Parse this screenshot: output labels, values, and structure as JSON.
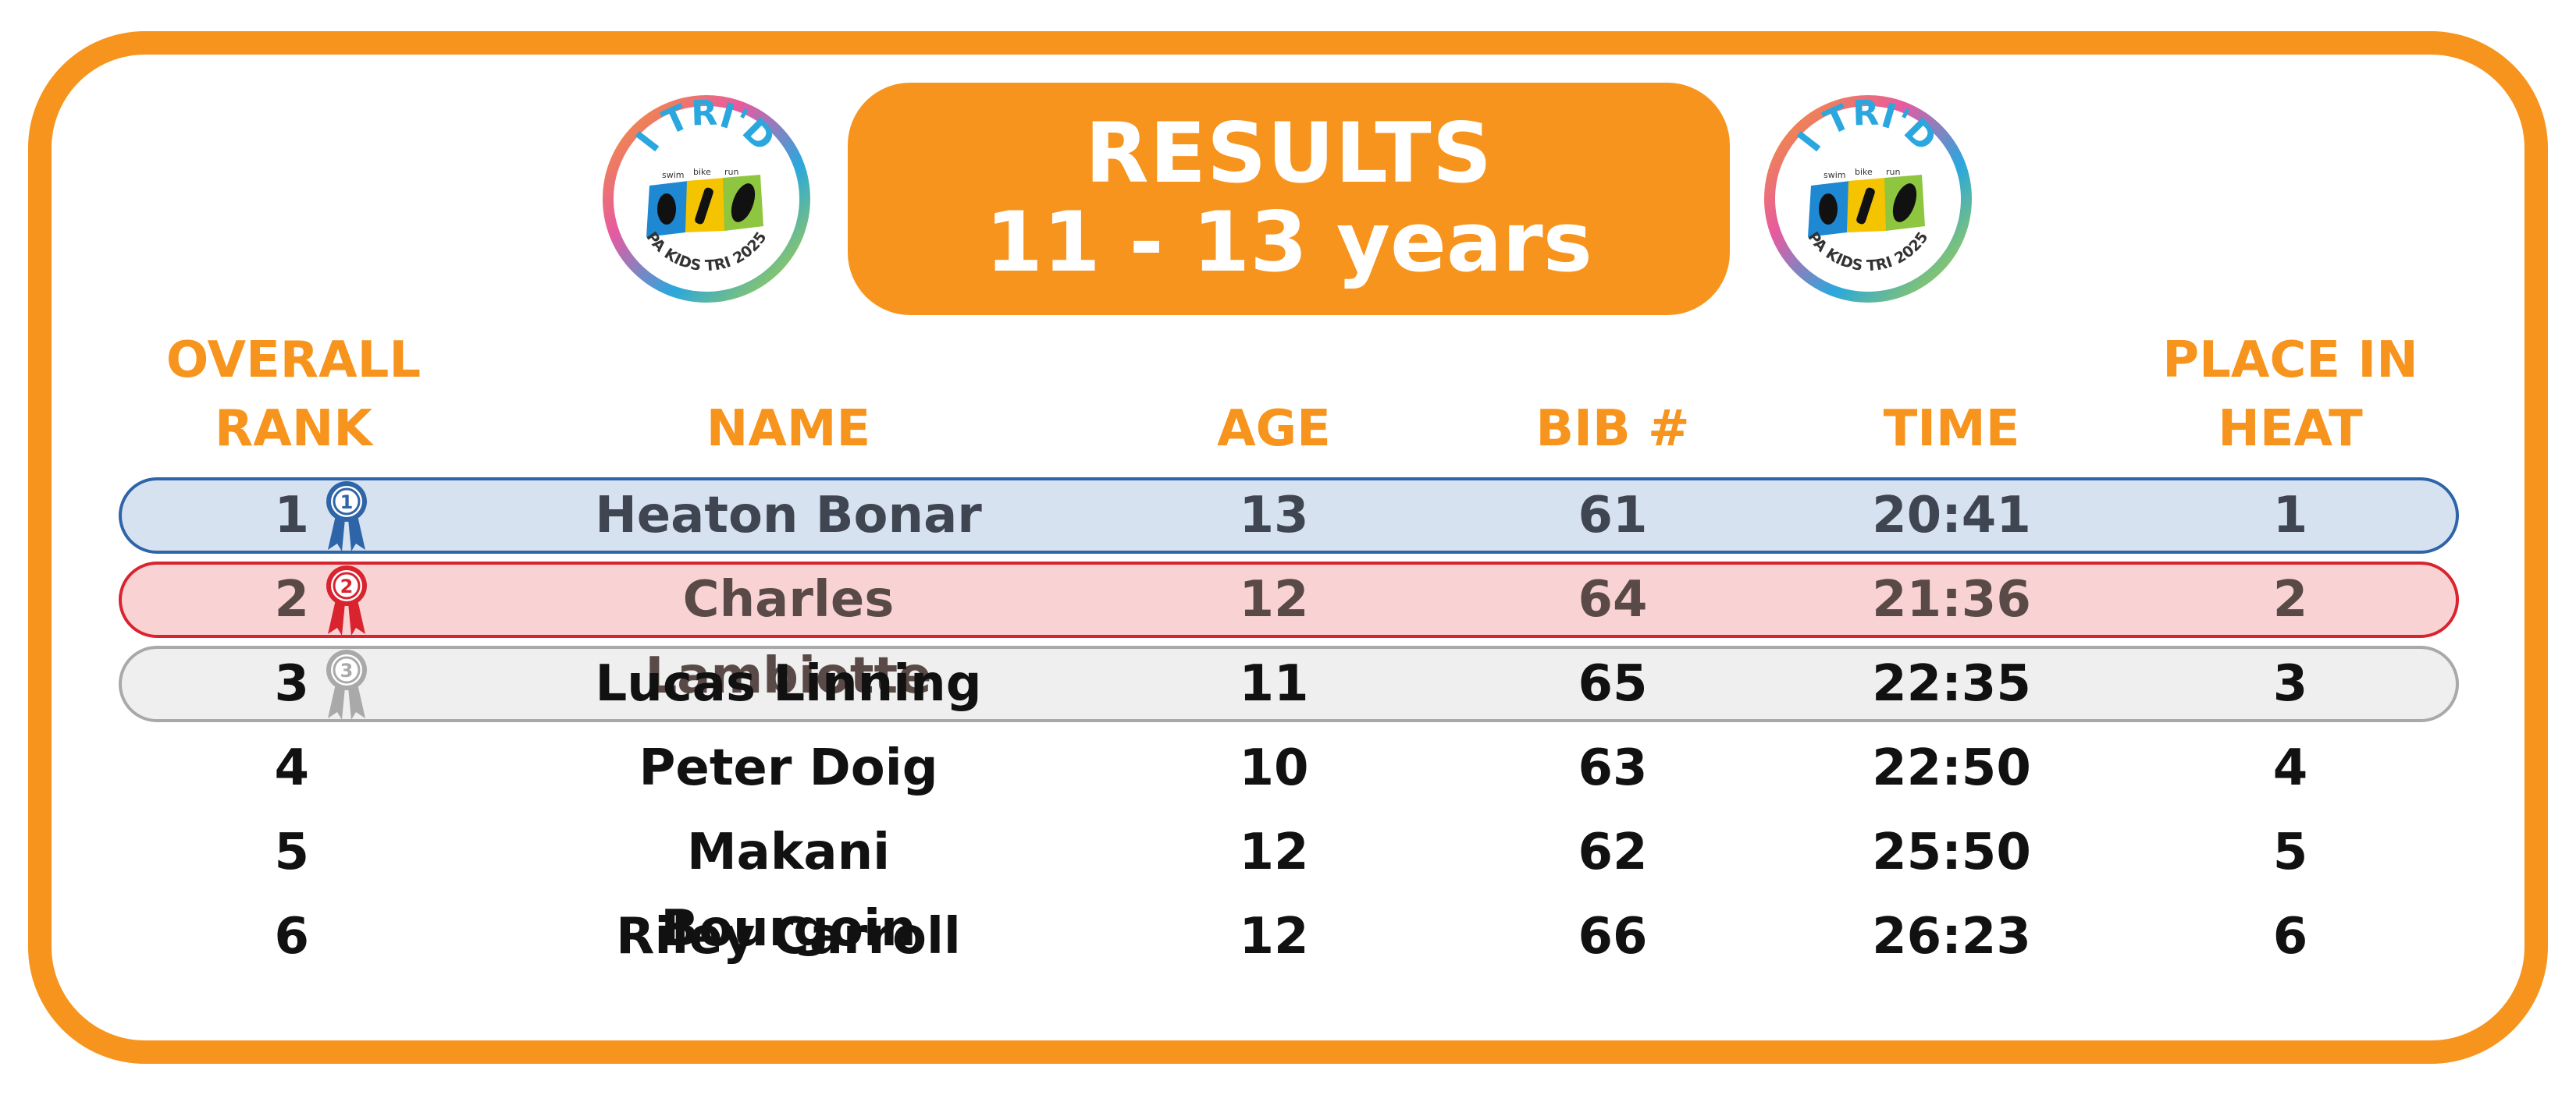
{
  "header": {
    "title": "RESULTS",
    "subtitle": "11 - 13 years"
  },
  "logo": {
    "arc_text": "I TRI'D",
    "bottom_text": "PA KIDS TRI 2025",
    "small_labels": [
      "swim",
      "bike",
      "run"
    ]
  },
  "columns": {
    "rank_line1": "OVERALL",
    "rank_line2": "RANK",
    "name": "NAME",
    "age": "AGE",
    "bib": "BIB #",
    "time": "TIME",
    "heat_line1": "PLACE IN",
    "heat_line2": "HEAT"
  },
  "colors": {
    "accent": "#f7941d",
    "first_fill": "#d7e2f1",
    "first_border": "#2e64a8",
    "second_fill": "#f9d3d4",
    "second_border": "#d9232e",
    "third_fill": "#efefef",
    "third_border": "#a9a9a9",
    "first_text": "#404651",
    "second_text": "#5a4a47",
    "default_text": "#111111"
  },
  "rows": [
    {
      "rank": "1",
      "name": "Heaton Bonar",
      "age": "13",
      "bib": "61",
      "time": "20:41",
      "heat": "1",
      "ribbon": "1"
    },
    {
      "rank": "2",
      "name": "Charles Lambiotte",
      "age": "12",
      "bib": "64",
      "time": "21:36",
      "heat": "2",
      "ribbon": "2"
    },
    {
      "rank": "3",
      "name": "Lucas Linning",
      "age": "11",
      "bib": "65",
      "time": "22:35",
      "heat": "3",
      "ribbon": "3"
    },
    {
      "rank": "4",
      "name": "Peter Doig",
      "age": "10",
      "bib": "63",
      "time": "22:50",
      "heat": "4"
    },
    {
      "rank": "5",
      "name": "Makani Bourgoin",
      "age": "12",
      "bib": "62",
      "time": "25:50",
      "heat": "5"
    },
    {
      "rank": "6",
      "name": "Riley Carroll",
      "age": "12",
      "bib": "66",
      "time": "26:23",
      "heat": "6"
    }
  ]
}
